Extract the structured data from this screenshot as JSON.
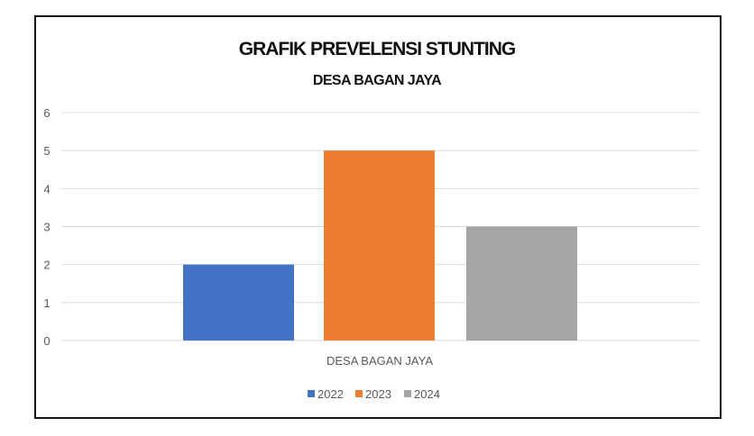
{
  "chart_data": {
    "type": "bar",
    "title": "GRAFIK PREVELENSI STUNTING",
    "subtitle": "DESA BAGAN JAYA",
    "categories": [
      "DESA BAGAN JAYA"
    ],
    "series": [
      {
        "name": "2022",
        "values": [
          2
        ],
        "color": "#4472C4"
      },
      {
        "name": "2023",
        "values": [
          5
        ],
        "color": "#ED7D31"
      },
      {
        "name": "2024",
        "values": [
          3
        ],
        "color": "#A5A5A5"
      }
    ],
    "xlabel": "",
    "ylabel": "",
    "ylim": [
      0,
      6
    ],
    "yticks": [
      "0",
      "1",
      "2",
      "3",
      "4",
      "5",
      "6"
    ],
    "grid": true,
    "legend": "bottom"
  }
}
